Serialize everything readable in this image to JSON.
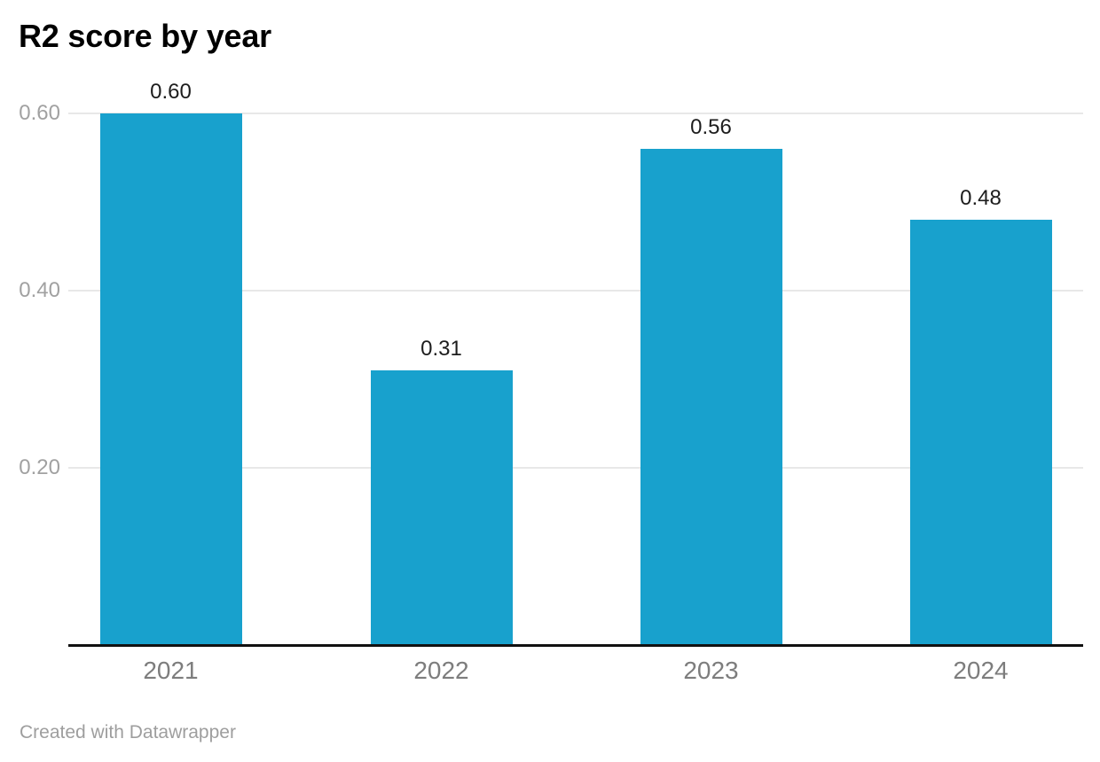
{
  "title": "R2 score by year",
  "footer": "Created with Datawrapper",
  "colors": {
    "bar": "#18a1cd",
    "gridline": "#e8e8e8",
    "axis_line": "#111111",
    "value_label": "#1d1d1d",
    "y_tick_label": "#a1a1a1",
    "x_tick_label": "#7d7d7d",
    "footer_text": "#9e9e9e",
    "title_text": "#000000",
    "background": "#ffffff"
  },
  "chart_data": {
    "type": "bar",
    "title": "R2 score by year",
    "categories": [
      "2021",
      "2022",
      "2023",
      "2024"
    ],
    "values": [
      0.6,
      0.31,
      0.56,
      0.48
    ],
    "value_labels": [
      "0.60",
      "0.31",
      "0.56",
      "0.48"
    ],
    "y_ticks": [
      0.2,
      0.4,
      0.6
    ],
    "y_tick_labels": [
      "0.20",
      "0.40",
      "0.60"
    ],
    "ylim": [
      0,
      0.6
    ],
    "xlabel": "",
    "ylabel": "",
    "grid": true,
    "legend": false,
    "attribution": "Created with Datawrapper"
  }
}
